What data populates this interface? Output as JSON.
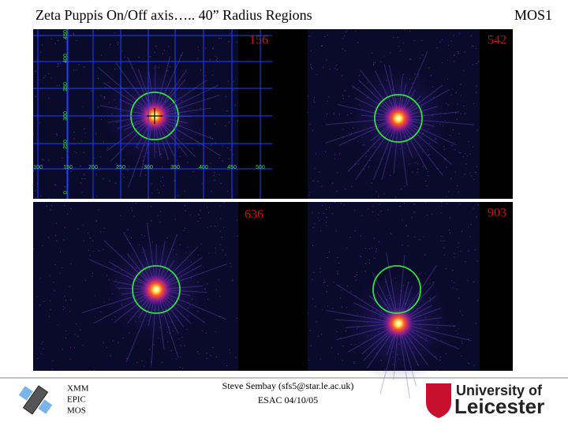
{
  "header": {
    "title": "Zeta Puppis On/Off axis….. 40” Radius Regions",
    "instrument": "MOS1"
  },
  "panels": [
    {
      "label": "156"
    },
    {
      "label": "542"
    },
    {
      "label": "636"
    },
    {
      "label": "903"
    }
  ],
  "grid": {
    "y_labels": [
      "450",
      "400",
      "350",
      "300",
      "250",
      "0"
    ],
    "x_labels": [
      "100",
      "150",
      "200",
      "250",
      "300",
      "350",
      "400",
      "450",
      "500"
    ]
  },
  "footer": {
    "instrument_lines": [
      "XMM",
      "EPIC",
      "MOS"
    ],
    "author": "Steve Sembay (sfs5@star.le.ac.uk)",
    "venue": "ESAC 04/10/05",
    "logo_line1": "University of",
    "logo_line2": "Leicester"
  }
}
